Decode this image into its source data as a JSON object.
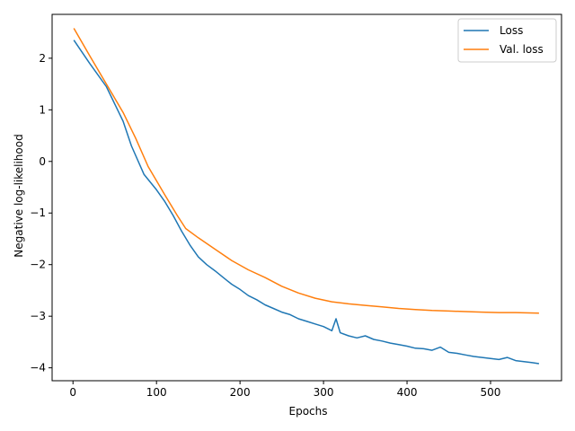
{
  "chart_data": {
    "type": "line",
    "xlabel": "Epochs",
    "ylabel": "Negative log-likelihood",
    "xlim": [
      -25,
      585
    ],
    "ylim": [
      -4.25,
      2.85
    ],
    "xticks": [
      0,
      100,
      200,
      300,
      400,
      500
    ],
    "yticks": [
      -4,
      -3,
      -2,
      -1,
      0,
      1,
      2
    ],
    "grid": false,
    "legend_position": "top-right",
    "series": [
      {
        "name": "Loss",
        "color": "#1f77b4",
        "x": [
          1,
          20,
          40,
          60,
          70,
          85,
          100,
          110,
          120,
          130,
          140,
          150,
          160,
          170,
          180,
          190,
          200,
          210,
          220,
          230,
          240,
          250,
          260,
          270,
          280,
          290,
          300,
          310,
          315,
          320,
          330,
          340,
          350,
          360,
          370,
          380,
          390,
          400,
          410,
          420,
          430,
          440,
          450,
          460,
          470,
          480,
          490,
          500,
          510,
          520,
          530,
          540,
          550,
          558
        ],
        "y": [
          2.35,
          1.9,
          1.45,
          0.78,
          0.3,
          -0.25,
          -0.55,
          -0.78,
          -1.05,
          -1.35,
          -1.62,
          -1.85,
          -2.0,
          -2.12,
          -2.25,
          -2.38,
          -2.48,
          -2.6,
          -2.68,
          -2.78,
          -2.85,
          -2.92,
          -2.97,
          -3.05,
          -3.1,
          -3.15,
          -3.2,
          -3.28,
          -3.05,
          -3.32,
          -3.38,
          -3.42,
          -3.38,
          -3.45,
          -3.48,
          -3.52,
          -3.55,
          -3.58,
          -3.62,
          -3.63,
          -3.66,
          -3.6,
          -3.7,
          -3.72,
          -3.75,
          -3.78,
          -3.8,
          -3.82,
          -3.84,
          -3.8,
          -3.86,
          -3.88,
          -3.9,
          -3.92
        ]
      },
      {
        "name": "Val. loss",
        "color": "#ff7f0e",
        "x": [
          1,
          20,
          40,
          60,
          75,
          90,
          110,
          125,
          135,
          150,
          170,
          190,
          210,
          230,
          250,
          270,
          290,
          310,
          330,
          350,
          370,
          390,
          410,
          430,
          450,
          470,
          490,
          510,
          530,
          558
        ],
        "y": [
          2.58,
          2.05,
          1.5,
          0.95,
          0.45,
          -0.1,
          -0.65,
          -1.05,
          -1.3,
          -1.48,
          -1.7,
          -1.92,
          -2.1,
          -2.25,
          -2.42,
          -2.55,
          -2.65,
          -2.72,
          -2.76,
          -2.79,
          -2.82,
          -2.85,
          -2.87,
          -2.89,
          -2.9,
          -2.91,
          -2.92,
          -2.93,
          -2.93,
          -2.94
        ]
      }
    ]
  }
}
